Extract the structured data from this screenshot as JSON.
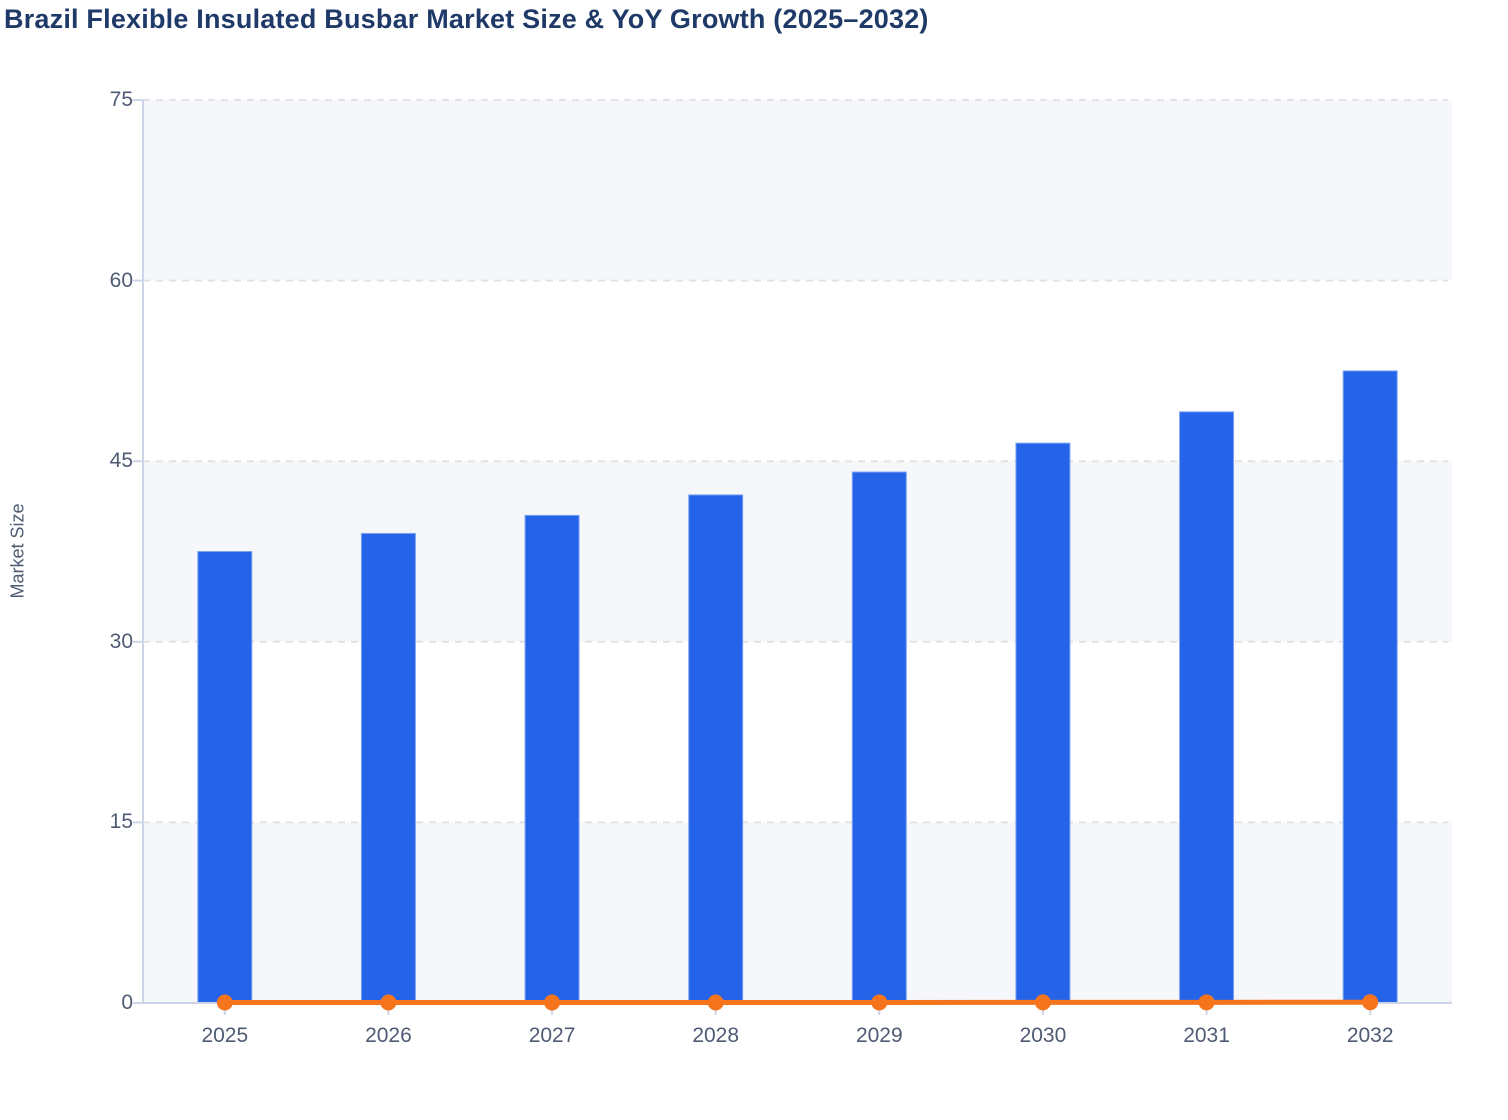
{
  "chart_data": {
    "type": "bar",
    "title": "Brazil Flexible Insulated Busbar Market Size & YoY Growth (2025–2032)",
    "xlabel": "",
    "ylabel": "Market Size",
    "categories": [
      "2025",
      "2026",
      "2027",
      "2028",
      "2029",
      "2030",
      "2031",
      "2032"
    ],
    "series": [
      {
        "name": "Market Size",
        "type": "bar",
        "color": "#2563e9",
        "values": [
          37.5,
          39.0,
          40.5,
          42.2,
          44.1,
          46.5,
          49.1,
          52.5
        ]
      },
      {
        "name": "YoY Growth",
        "type": "line",
        "color": "#f6741b",
        "values": [
          0.04,
          0.04,
          0.041,
          0.042,
          0.045,
          0.052,
          0.057,
          0.066
        ]
      }
    ],
    "ylim": [
      0,
      75
    ],
    "yticks": [
      0,
      15,
      30,
      45,
      60,
      75
    ],
    "grid": "horizontal-dashed",
    "legend_position": "none",
    "colors": {
      "title": "#1f3a68",
      "tick_label": "#4f5b73",
      "axis": "#ccd4e8",
      "grid_line": "#e3e3e7",
      "band_shaded": "#f6f7fa",
      "band_plain": "#ffffff",
      "bar_border": "#7ea4f0"
    }
  }
}
